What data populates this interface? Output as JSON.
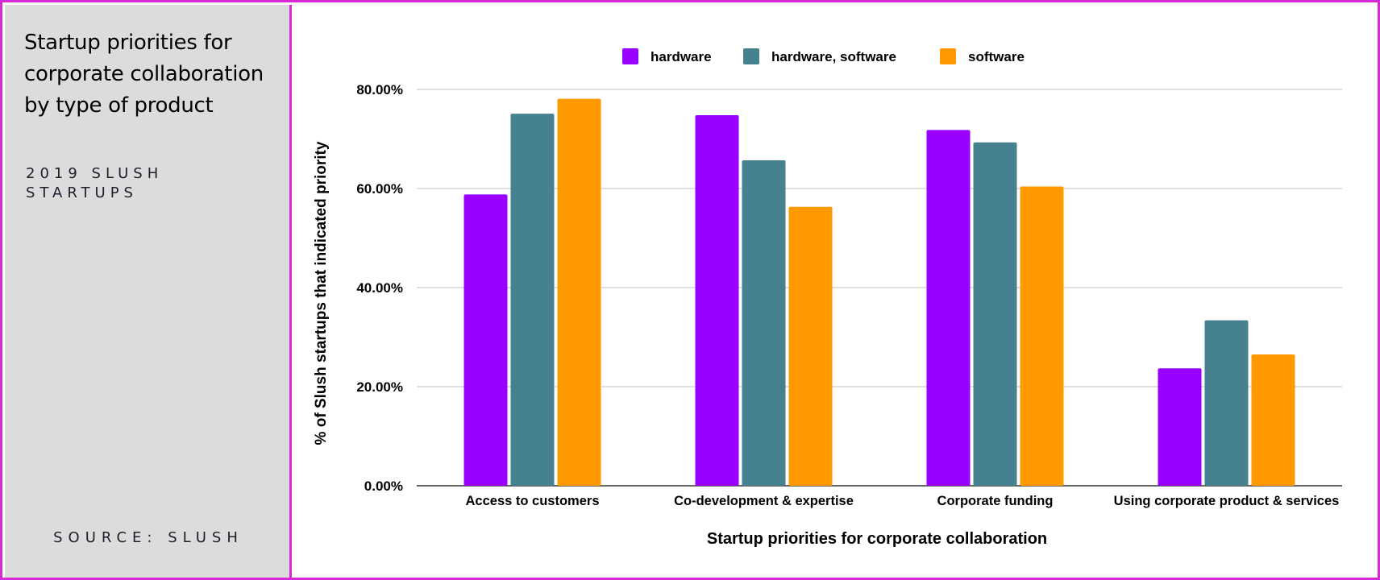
{
  "sidebar": {
    "title": "Startup priorities for corporate collaboration by type of product",
    "subtitle": "2019 SLUSH STARTUPS",
    "source": "SOURCE: SLUSH"
  },
  "chart_data": {
    "type": "bar",
    "categories": [
      "Access to customers",
      "Co-development & expertise",
      "Corporate funding",
      "Using corporate product & services"
    ],
    "series": [
      {
        "name": "hardware",
        "color": "#9900ff",
        "values": [
          58.8,
          74.8,
          71.8,
          23.7
        ]
      },
      {
        "name": "hardware, software",
        "color": "#45818e",
        "values": [
          75.1,
          65.7,
          69.3,
          33.4
        ]
      },
      {
        "name": "software",
        "color": "#ff9900",
        "values": [
          78.1,
          56.3,
          60.4,
          26.5
        ]
      }
    ],
    "xlabel": "Startup priorities for corporate collaboration",
    "ylabel": "% of Slush startups that indicated priority",
    "ylim": [
      0,
      80
    ],
    "yticks": [
      0,
      20,
      40,
      60,
      80
    ],
    "ytick_labels": [
      "0.00%",
      "20.00%",
      "40.00%",
      "60.00%",
      "80.00%"
    ],
    "grid": true,
    "legend_position": "top"
  }
}
